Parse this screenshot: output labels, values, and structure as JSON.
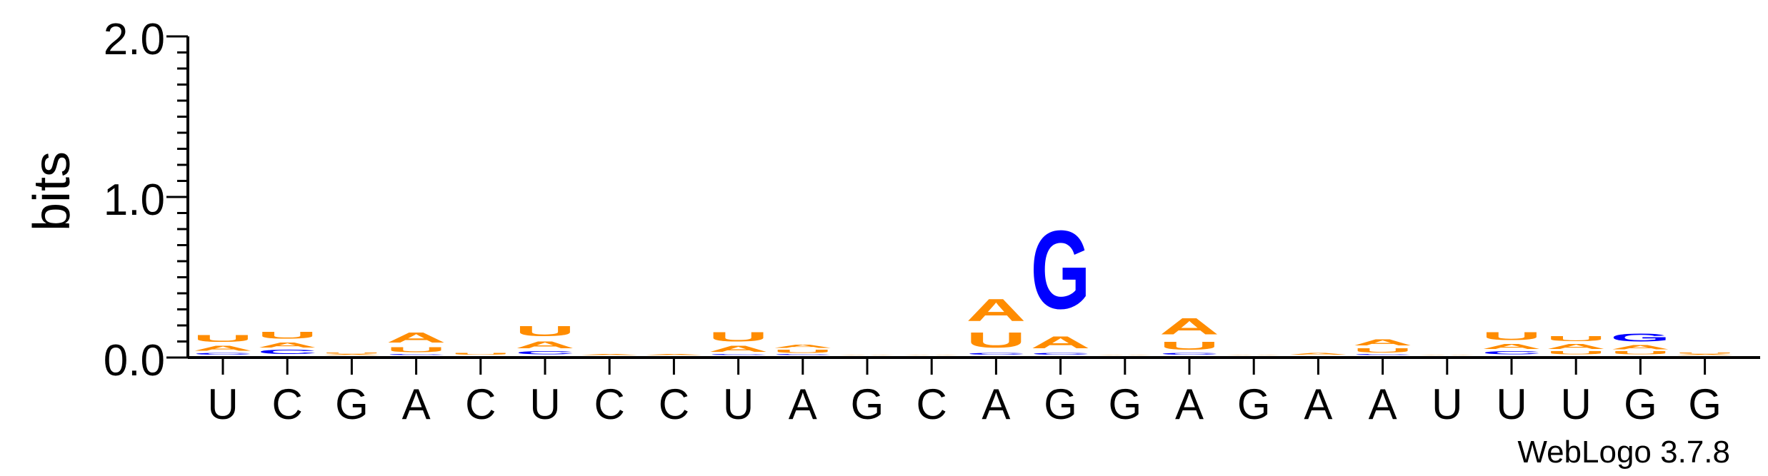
{
  "chart_data": {
    "type": "sequence-logo",
    "ylabel": "bits",
    "ylim": [
      0,
      2.0
    ],
    "yticks": [
      {
        "value": 0,
        "label": "0.0"
      },
      {
        "value": 1,
        "label": "1.0"
      },
      {
        "value": 2,
        "label": "2.0"
      }
    ],
    "minor_tick_step": 0.1,
    "positions": [
      "U",
      "C",
      "G",
      "A",
      "C",
      "U",
      "C",
      "C",
      "U",
      "A",
      "G",
      "C",
      "A",
      "G",
      "G",
      "A",
      "G",
      "A",
      "A",
      "U",
      "U",
      "U",
      "G",
      "G"
    ],
    "stacks": [
      [
        {
          "letter": "C",
          "bits": 0.02
        },
        {
          "letter": "A",
          "bits": 0.05
        },
        {
          "letter": "U",
          "bits": 0.07
        }
      ],
      [
        {
          "letter": "C",
          "bits": 0.04
        },
        {
          "letter": "A",
          "bits": 0.05
        },
        {
          "letter": "U",
          "bits": 0.07
        }
      ],
      [
        {
          "letter": "A",
          "bits": 0.01
        },
        {
          "letter": "U",
          "bits": 0.01
        }
      ],
      [
        {
          "letter": "C",
          "bits": 0.01
        },
        {
          "letter": "U",
          "bits": 0.05
        },
        {
          "letter": "A",
          "bits": 0.1
        }
      ],
      [
        {
          "letter": "U",
          "bits": 0.02
        }
      ],
      [
        {
          "letter": "C",
          "bits": 0.03
        },
        {
          "letter": "A",
          "bits": 0.07
        },
        {
          "letter": "U",
          "bits": 0.1
        }
      ],
      [
        {
          "letter": "A",
          "bits": 0.01
        }
      ],
      [
        {
          "letter": "A",
          "bits": 0.01
        }
      ],
      [
        {
          "letter": "C",
          "bits": 0.01
        },
        {
          "letter": "A",
          "bits": 0.06
        },
        {
          "letter": "U",
          "bits": 0.09
        }
      ],
      [
        {
          "letter": "C",
          "bits": 0.01
        },
        {
          "letter": "U",
          "bits": 0.03
        },
        {
          "letter": "A",
          "bits": 0.03
        }
      ],
      [
        {
          "letter": "A",
          "bits": 0.005
        }
      ],
      [
        {
          "letter": "A",
          "bits": 0.005
        }
      ],
      [
        {
          "letter": "C",
          "bits": 0.02
        },
        {
          "letter": "U",
          "bits": 0.15
        },
        {
          "letter": "A",
          "bits": 0.22
        }
      ],
      [
        {
          "letter": "C",
          "bits": 0.02
        },
        {
          "letter": "A",
          "bits": 0.12
        },
        {
          "letter": "G",
          "bits": 0.78
        }
      ],
      [
        {
          "letter": "A",
          "bits": 0.005
        }
      ],
      [
        {
          "letter": "C",
          "bits": 0.02
        },
        {
          "letter": "U",
          "bits": 0.08
        },
        {
          "letter": "A",
          "bits": 0.16
        }
      ],
      [
        {
          "letter": "A",
          "bits": 0.005
        }
      ],
      [
        {
          "letter": "A",
          "bits": 0.02
        }
      ],
      [
        {
          "letter": "C",
          "bits": 0.01
        },
        {
          "letter": "U",
          "bits": 0.04
        },
        {
          "letter": "A",
          "bits": 0.06
        }
      ],
      [
        {
          "letter": "A",
          "bits": 0.005
        }
      ],
      [
        {
          "letter": "C",
          "bits": 0.03
        },
        {
          "letter": "A",
          "bits": 0.05
        },
        {
          "letter": "U",
          "bits": 0.08
        }
      ],
      [
        {
          "letter": "U",
          "bits": 0.03
        },
        {
          "letter": "A",
          "bits": 0.05
        },
        {
          "letter": "U",
          "bits": 0.05
        }
      ],
      [
        {
          "letter": "U",
          "bits": 0.03
        },
        {
          "letter": "A",
          "bits": 0.04
        },
        {
          "letter": "G",
          "bits": 0.08
        }
      ],
      [
        {
          "letter": "A",
          "bits": 0.01
        },
        {
          "letter": "U",
          "bits": 0.01
        }
      ]
    ],
    "colors": {
      "A": "#ff8c00",
      "U": "#ff8c00",
      "C": "#0000ff",
      "G": "#0000ff"
    },
    "credit": "WebLogo 3.7.8"
  }
}
